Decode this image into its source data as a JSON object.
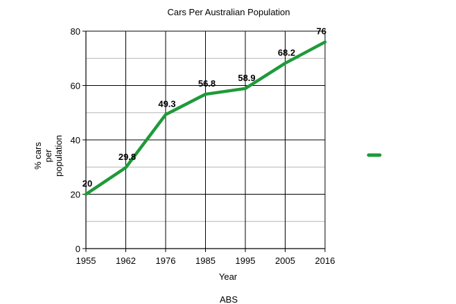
{
  "chart_data": {
    "type": "line",
    "title": "Cars Per Australian Population",
    "xlabel": "Year",
    "ylabel_lines": [
      "% cars",
      "per",
      "population"
    ],
    "source": "ABS",
    "categories": [
      "1955",
      "1962",
      "1976",
      "1985",
      "1995",
      "2005",
      "2016"
    ],
    "series": [
      {
        "values": [
          20,
          29.8,
          49.3,
          56.8,
          58.9,
          68.2,
          76
        ],
        "data_labels": [
          "20",
          "29.8",
          "49.3",
          "56.8",
          "58.9",
          "68.2",
          "76"
        ],
        "color": "#1e9a3a"
      }
    ],
    "ylim": [
      0,
      80
    ],
    "yticks": [
      "0",
      "20",
      "40",
      "60",
      "80"
    ],
    "grid": true,
    "legend": "right"
  }
}
